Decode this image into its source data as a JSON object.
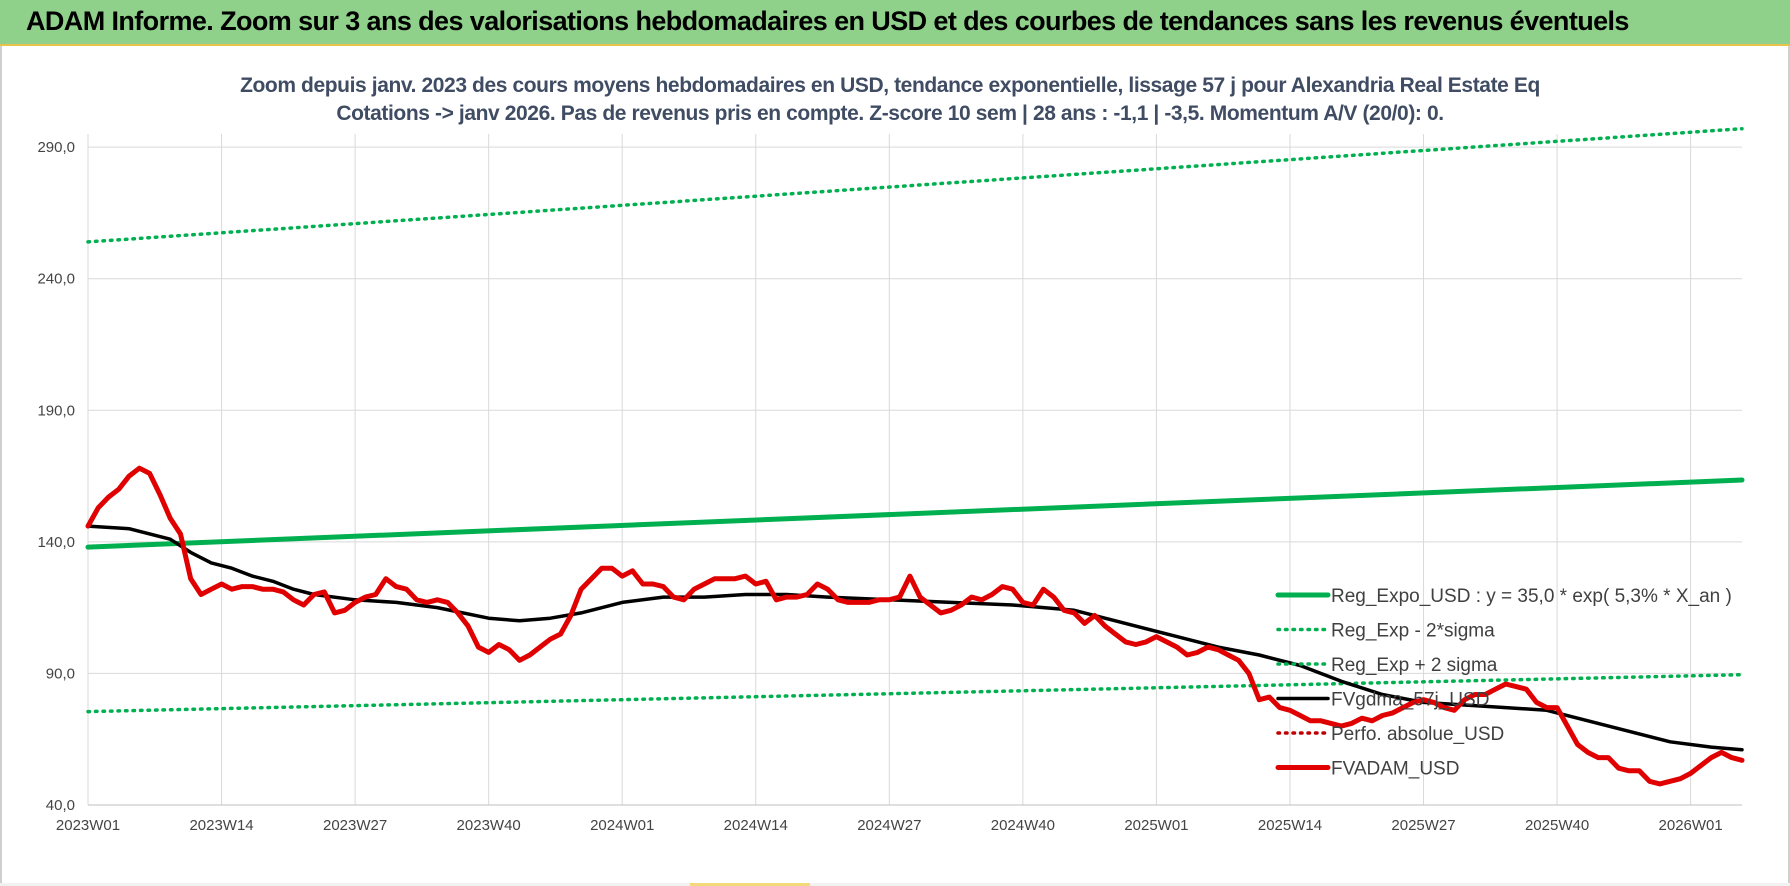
{
  "header": {
    "title": "ADAM Informe. Zoom sur 3 ans des valorisations hebdomadaires en USD et des courbes de tendances sans les revenus éventuels"
  },
  "chart_data": {
    "type": "line",
    "title_line1": "Zoom depuis janv. 2023 des cours moyens hebdomadaires en USD, tendance exponentielle, lissage 57 j pour Alexandria Real Estate Eq",
    "title_line2": "Cotations -> janv 2026. Pas de revenus pris en compte. Z-score 10 sem | 28 ans : -1,1 | -3,5. Momentum A/V (20/0): 0.",
    "x_tick_labels": [
      "2023W01",
      "2023W14",
      "2023W27",
      "2023W40",
      "2024W01",
      "2024W14",
      "2024W27",
      "2024W40",
      "2025W01",
      "2025W14",
      "2025W27",
      "2025W40",
      "2026W01"
    ],
    "x_range": [
      0,
      161
    ],
    "y_tick_labels": [
      "40,0",
      "90,0",
      "140,0",
      "190,0",
      "240,0",
      "290,0"
    ],
    "y_ticks": [
      40,
      90,
      140,
      190,
      240,
      290
    ],
    "ylim": [
      40,
      295
    ],
    "grid": true,
    "legend_position": "bottom-right",
    "series": [
      {
        "name": "Reg_Expo_USD : y = 35,0 * exp( 5,3% *  X_an )",
        "color": "#00b050",
        "style": "solid-thick",
        "x": [
          0,
          161
        ],
        "y": [
          138.0,
          163.5
        ]
      },
      {
        "name": "Reg_Exp - 2*sigma",
        "color": "#00b050",
        "style": "dotted",
        "x": [
          0,
          161
        ],
        "y": [
          75.5,
          89.5
        ]
      },
      {
        "name": "Reg_Exp + 2 sigma",
        "color": "#00b050",
        "style": "dotted",
        "x": [
          0,
          161
        ],
        "y": [
          254.0,
          297.0
        ]
      },
      {
        "name": "FVgdma_57j_USD",
        "color": "#000000",
        "style": "solid",
        "x": [
          0,
          4,
          8,
          10,
          12,
          14,
          16,
          18,
          20,
          22,
          26,
          30,
          34,
          39,
          42,
          45,
          48,
          52,
          56,
          60,
          64,
          68,
          72,
          78,
          84,
          90,
          96,
          100,
          106,
          110,
          114,
          118,
          122,
          126,
          130,
          134,
          138,
          142,
          146,
          150,
          154,
          158,
          161
        ],
        "y": [
          146,
          145,
          141,
          136,
          132,
          130,
          127,
          125,
          122,
          120,
          118,
          117,
          115,
          111,
          110,
          111,
          113,
          117,
          119,
          119,
          120,
          120,
          119,
          118,
          117,
          116,
          114,
          110,
          104,
          100,
          97,
          93,
          87,
          82,
          79,
          78,
          77,
          76,
          72,
          68,
          64,
          62,
          61
        ]
      },
      {
        "name": "Perfo. absolue_USD",
        "color": "#c00000",
        "style": "dotted",
        "x": [],
        "y": []
      },
      {
        "name": "FVADAM_USD",
        "color": "#e00000",
        "style": "solid-thick",
        "x": [
          0,
          1,
          2,
          3,
          4,
          5,
          6,
          7,
          8,
          9,
          10,
          11,
          12,
          13,
          14,
          15,
          16,
          17,
          18,
          19,
          20,
          21,
          22,
          23,
          24,
          25,
          26,
          27,
          28,
          29,
          30,
          31,
          32,
          33,
          34,
          35,
          36,
          37,
          38,
          39,
          40,
          41,
          42,
          43,
          44,
          45,
          46,
          47,
          48,
          49,
          50,
          51,
          52,
          53,
          54,
          55,
          56,
          57,
          58,
          59,
          60,
          61,
          62,
          63,
          64,
          65,
          66,
          67,
          68,
          69,
          70,
          71,
          72,
          73,
          74,
          75,
          76,
          77,
          78,
          79,
          80,
          81,
          82,
          83,
          84,
          85,
          86,
          87,
          88,
          89,
          90,
          91,
          92,
          93,
          94,
          95,
          96,
          97,
          98,
          99,
          100,
          101,
          102,
          103,
          104,
          105,
          106,
          107,
          108,
          109,
          110,
          111,
          112,
          113,
          114,
          115,
          116,
          117,
          118,
          119,
          120,
          121,
          122,
          123,
          124,
          125,
          126,
          127,
          128,
          129,
          130,
          131,
          132,
          133,
          134,
          135,
          136,
          137,
          138,
          139,
          140,
          141,
          142,
          143,
          144,
          145,
          146,
          147,
          148,
          149,
          150,
          151,
          152,
          153,
          154,
          155,
          156,
          157,
          158,
          159,
          160,
          161
        ],
        "y": [
          146,
          153,
          157,
          160,
          165,
          168,
          166,
          158,
          149,
          143,
          126,
          120,
          122,
          124,
          122,
          123,
          123,
          122,
          122,
          121,
          118,
          116,
          120,
          121,
          113,
          114,
          117,
          119,
          120,
          126,
          123,
          122,
          118,
          117,
          118,
          117,
          113,
          108,
          100,
          98,
          101,
          99,
          95,
          97,
          100,
          103,
          105,
          112,
          122,
          126,
          130,
          130,
          127,
          129,
          124,
          124,
          123,
          119,
          118,
          122,
          124,
          126,
          126,
          126,
          127,
          124,
          125,
          118,
          119,
          119,
          120,
          124,
          122,
          118,
          117,
          117,
          117,
          118,
          118,
          119,
          127,
          119,
          116,
          113,
          114,
          116,
          119,
          118,
          120,
          123,
          122,
          117,
          116,
          122,
          119,
          114,
          113,
          109,
          112,
          108,
          105,
          102,
          101,
          102,
          104,
          102,
          100,
          97,
          98,
          100,
          99,
          97,
          95,
          90,
          80,
          81,
          77,
          76,
          74,
          72,
          72,
          71,
          70,
          71,
          73,
          72,
          74,
          75,
          77,
          79,
          80,
          79,
          77,
          76,
          80,
          82,
          82,
          84,
          86,
          85,
          84,
          79,
          77,
          77,
          70,
          63,
          60,
          58,
          58,
          54,
          53,
          53,
          49,
          48,
          49,
          50,
          52,
          55,
          58,
          60,
          58,
          57
        ]
      }
    ]
  }
}
